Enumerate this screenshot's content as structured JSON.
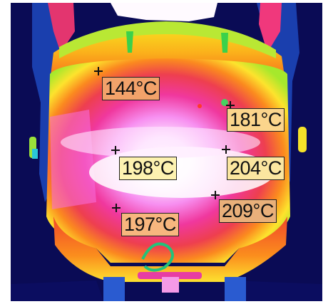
{
  "image": {
    "kind": "thermal-camera-frame",
    "palette": "iron/rainbow",
    "background_color": "#0a0b55"
  },
  "spots": [
    {
      "label": "144°C",
      "label_color": "#f2a26a"
    },
    {
      "label": "181°C",
      "label_color": "#fbd58c"
    },
    {
      "label": "198°C",
      "label_color": "#fdf2b0"
    },
    {
      "label": "204°C",
      "label_color": "#fbe6a0"
    },
    {
      "label": "197°C",
      "label_color": "#f7b67e"
    },
    {
      "label": "209°C",
      "label_color": "#e9b07a"
    }
  ]
}
